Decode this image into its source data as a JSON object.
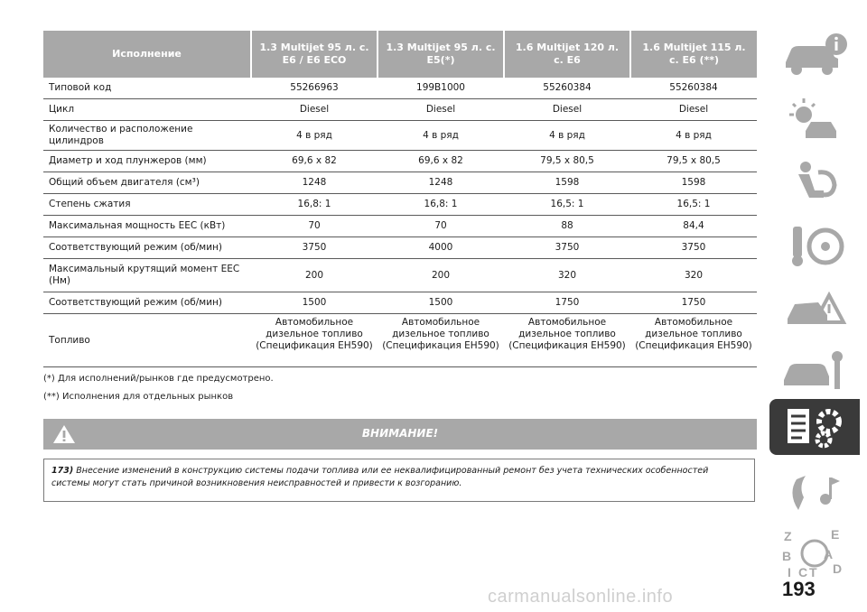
{
  "table": {
    "headers": [
      "Исполнение",
      "1.3 Multijet 95 л. с.\nE6 / E6 ECO",
      "1.3 Multijet 95 л. с.\nE5(*)",
      "1.6 Multijet 120 л.\nс. E6",
      "1.6 Multijet 115 л.\nс. E6 (**)"
    ],
    "rows": [
      {
        "label": "Типовой код",
        "values": [
          "55266963",
          "199B1000",
          "55260384",
          "55260384"
        ]
      },
      {
        "label": "Цикл",
        "values": [
          "Diesel",
          "Diesel",
          "Diesel",
          "Diesel"
        ]
      },
      {
        "label": "Количество и расположение цилиндров",
        "values": [
          "4 в ряд",
          "4 в ряд",
          "4 в ряд",
          "4 в ряд"
        ]
      },
      {
        "label": "Диаметр и ход плунжеров (мм)",
        "values": [
          "69,6 x 82",
          "69,6 x 82",
          "79,5 x 80,5",
          "79,5 x 80,5"
        ]
      },
      {
        "label": "Общий объем двигателя (см³)",
        "values": [
          "1248",
          "1248",
          "1598",
          "1598"
        ]
      },
      {
        "label": "Степень сжатия",
        "values": [
          "16,8: 1",
          "16,8: 1",
          "16,5: 1",
          "16,5: 1"
        ]
      },
      {
        "label": "Максимальная мощность ЕЕС (кВт)",
        "values": [
          "70",
          "70",
          "88",
          "84,4"
        ]
      },
      {
        "label": "Соответствующий режим (об/мин)",
        "values": [
          "3750",
          "4000",
          "3750",
          "3750"
        ]
      },
      {
        "label": "Максимальный крутящий момент ЕЕС (Нм)",
        "values": [
          "200",
          "200",
          "320",
          "320"
        ]
      },
      {
        "label": "Соответствующий режим (об/мин)",
        "values": [
          "1500",
          "1500",
          "1750",
          "1750"
        ]
      },
      {
        "label": "Топливо",
        "values": [
          "Автомобильное дизельное топливо (Спецификация EH590)",
          "Автомобильное дизельное топливо (Спецификация EH590)",
          "Автомобильное дизельное топливо (Спецификация EH590)",
          "Автомобильное дизельное топливо (Спецификация EH590)"
        ]
      }
    ]
  },
  "notes": [
    "(*) Для исполнений/рынков где предусмотрено.",
    "(**) Исполнения для отдельных рынков"
  ],
  "warning": {
    "title": "ВНИМАНИЕ!",
    "number": "173)",
    "text": "Внесение изменений в конструкцию системы подачи топлива или ее неквалифицированный ремонт без учета технических особенностей системы могут стать причиной возникновения неисправностей и привести к возгоранию."
  },
  "page_number": "193",
  "watermark": "carmanualsonline.info",
  "colors": {
    "header_bg": "#a8a8a8",
    "sidebar_icon": "#a8a8a8",
    "sidebar_active_bg": "#3a3a3a"
  },
  "sidebar_icons": [
    "car-info-icon",
    "warning-lights-icon",
    "seat-airbag-icon",
    "key-steering-icon",
    "emergency-icon",
    "car-maintenance-icon",
    "technical-data-icon",
    "multimedia-icon",
    "index-icon"
  ]
}
